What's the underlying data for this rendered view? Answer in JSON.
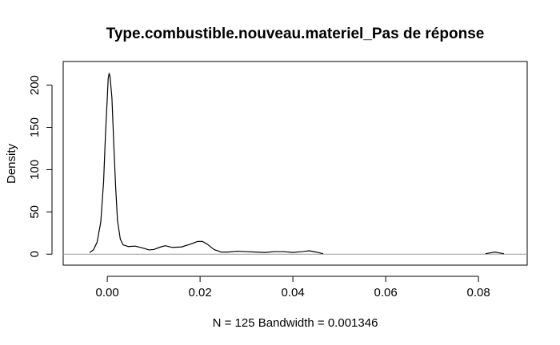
{
  "chart_data": {
    "type": "line",
    "title": "Type.combustible.nouveau.materiel_Pas de réponse",
    "xlabel": "N = 125   Bandwidth = 0.001346",
    "ylabel": "Density",
    "xlim": [
      -0.0095,
      0.0905
    ],
    "ylim": [
      -13,
      228
    ],
    "x_ticks": [
      0.0,
      0.02,
      0.04,
      0.06,
      0.08
    ],
    "x_tick_labels": [
      "0.00",
      "0.02",
      "0.04",
      "0.06",
      "0.08"
    ],
    "y_ticks": [
      0,
      50,
      100,
      150,
      200
    ],
    "y_tick_labels": [
      "0",
      "50",
      "100",
      "150",
      "200"
    ],
    "zero_line": 0,
    "grid": false,
    "series": [
      {
        "segments": [
          [
            [
              -0.0038,
              2
            ],
            [
              -0.003,
              5
            ],
            [
              -0.0022,
              14
            ],
            [
              -0.0014,
              38
            ],
            [
              -0.0008,
              85
            ],
            [
              -0.0004,
              140
            ],
            [
              0.0,
              185
            ],
            [
              0.0002,
              208
            ],
            [
              0.0004,
              214
            ],
            [
              0.0006,
              210
            ],
            [
              0.001,
              185
            ],
            [
              0.0014,
              130
            ],
            [
              0.0018,
              80
            ],
            [
              0.0022,
              40
            ],
            [
              0.0028,
              18
            ],
            [
              0.0034,
              11
            ],
            [
              0.0045,
              9
            ],
            [
              0.006,
              9.5
            ],
            [
              0.0075,
              7.5
            ],
            [
              0.009,
              5
            ],
            [
              0.01,
              5.5
            ],
            [
              0.0115,
              8.5
            ],
            [
              0.0125,
              10
            ],
            [
              0.014,
              8
            ],
            [
              0.016,
              8.5
            ],
            [
              0.018,
              12
            ],
            [
              0.0195,
              15
            ],
            [
              0.0205,
              15
            ],
            [
              0.0215,
              12
            ],
            [
              0.023,
              5.5
            ],
            [
              0.0245,
              2.5
            ],
            [
              0.026,
              2.5
            ],
            [
              0.028,
              3.5
            ],
            [
              0.03,
              3
            ],
            [
              0.032,
              2.5
            ],
            [
              0.034,
              2
            ],
            [
              0.036,
              3
            ],
            [
              0.038,
              3
            ],
            [
              0.04,
              2
            ],
            [
              0.042,
              3
            ],
            [
              0.0435,
              4
            ],
            [
              0.045,
              2.5
            ],
            [
              0.0465,
              0.5
            ]
          ],
          [
            [
              0.0815,
              0.5
            ],
            [
              0.0825,
              1.5
            ],
            [
              0.0835,
              2.5
            ],
            [
              0.0845,
              1.5
            ],
            [
              0.0855,
              0.5
            ]
          ]
        ]
      }
    ]
  }
}
